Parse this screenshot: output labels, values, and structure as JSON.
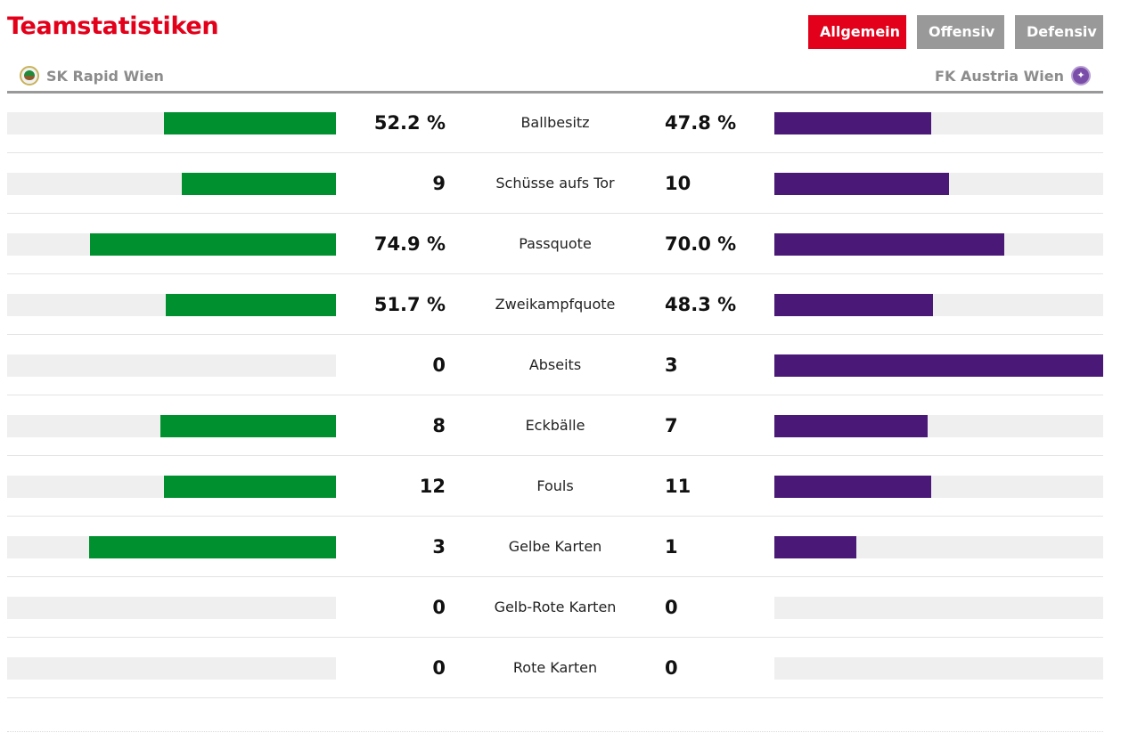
{
  "header": {
    "title": "Teamstatistiken",
    "tabs": [
      {
        "label": "Allgemein",
        "active": true
      },
      {
        "label": "Offensiv",
        "active": false
      },
      {
        "label": "Defensiv",
        "active": false
      }
    ]
  },
  "teams": {
    "home": {
      "name": "SK Rapid Wien",
      "crest_icon": "rapid-crest-icon",
      "color": "#00902f"
    },
    "away": {
      "name": "FK Austria Wien",
      "crest_icon": "austria-crest-icon",
      "color": "#4a1877"
    }
  },
  "colors": {
    "accent": "#e2001a",
    "inactive_tab": "#999999",
    "track": "#efefef"
  },
  "stats": [
    {
      "label": "Ballbesitz",
      "home": "52.2 %",
      "away": "47.8 %",
      "home_fill": 0.522,
      "away_fill": 0.478
    },
    {
      "label": "Schüsse aufs Tor",
      "home": "9",
      "away": "10",
      "home_fill": 0.47,
      "away_fill": 0.53
    },
    {
      "label": "Passquote",
      "home": "74.9 %",
      "away": "70.0 %",
      "home_fill": 0.749,
      "away_fill": 0.7
    },
    {
      "label": "Zweikampfquote",
      "home": "51.7 %",
      "away": "48.3 %",
      "home_fill": 0.517,
      "away_fill": 0.483
    },
    {
      "label": "Abseits",
      "home": "0",
      "away": "3",
      "home_fill": 0,
      "away_fill": 1
    },
    {
      "label": "Eckbälle",
      "home": "8",
      "away": "7",
      "home_fill": 0.533,
      "away_fill": 0.467
    },
    {
      "label": "Fouls",
      "home": "12",
      "away": "11",
      "home_fill": 0.522,
      "away_fill": 0.478
    },
    {
      "label": "Gelbe Karten",
      "home": "3",
      "away": "1",
      "home_fill": 0.75,
      "away_fill": 0.25
    },
    {
      "label": "Gelb-Rote Karten",
      "home": "0",
      "away": "0",
      "home_fill": 0,
      "away_fill": 0
    },
    {
      "label": "Rote Karten",
      "home": "0",
      "away": "0",
      "home_fill": 0,
      "away_fill": 0
    }
  ]
}
